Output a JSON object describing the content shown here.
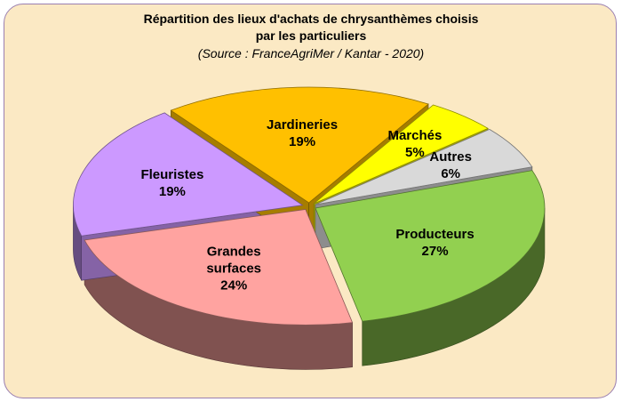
{
  "chart_data": {
    "type": "pie",
    "title": "Répartition des lieux d'achats de chrysanthèmes choisis par les particuliers",
    "subtitle": "(Source : FranceAgriMer / Kantar - 2020)",
    "categories": [
      "Producteurs",
      "Grandes surfaces",
      "Fleuristes",
      "Jardineries",
      "Marchés",
      "Autres"
    ],
    "values": [
      27,
      24,
      19,
      19,
      5,
      6
    ],
    "value_labels": [
      "27%",
      "24%",
      "19%",
      "19%",
      "5%",
      "6%"
    ],
    "colors": [
      "#92d050",
      "#ffa3a0",
      "#cc99ff",
      "#ffc000",
      "#ffff00",
      "#d9d9d9"
    ]
  }
}
